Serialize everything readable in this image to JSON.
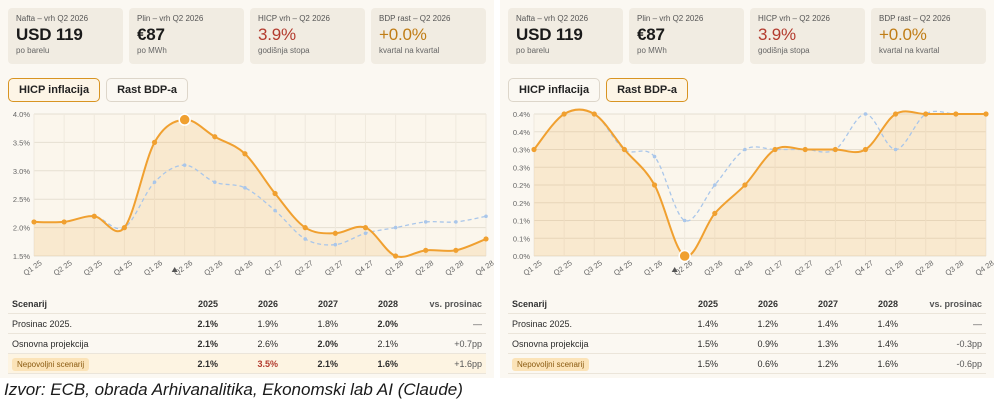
{
  "panels": [
    {
      "cards": [
        {
          "label": "Nafta – vrh Q2 2026",
          "value": "USD 119",
          "sub": "po barelu",
          "tone": "dark"
        },
        {
          "label": "Plin – vrh Q2 2026",
          "value": "€87",
          "sub": "po MWh",
          "tone": "dark"
        },
        {
          "label": "HICP vrh – Q2 2026",
          "value": "3.9%",
          "sub": "godišnja stopa",
          "tone": "red"
        },
        {
          "label": "BDP rast – Q2 2026",
          "value": "+0.0%",
          "sub": "kvartal na kvartal",
          "tone": "orange"
        }
      ],
      "tabs": [
        {
          "label": "HICP inflacija",
          "active": true
        },
        {
          "label": "Rast BDP-a",
          "active": false
        }
      ],
      "table": {
        "headers": [
          "Scenarij",
          "2025",
          "2026",
          "2027",
          "2028",
          "vs. prosinac"
        ],
        "rows": [
          [
            "Prosinac 2025.",
            "2.1%",
            "1.9%",
            "1.8%",
            "2.0%",
            "—"
          ],
          [
            "Osnovna projekcija",
            "2.1%",
            "2.6%",
            "2.0%",
            "2.1%",
            "+0.7pp"
          ],
          [
            "Nepovoljni scenarij",
            "2.1%",
            "3.5%",
            "2.1%",
            "1.6%",
            "+1.6pp"
          ]
        ]
      }
    },
    {
      "cards": [
        {
          "label": "Nafta – vrh Q2 2026",
          "value": "USD 119",
          "sub": "po barelu",
          "tone": "dark"
        },
        {
          "label": "Plin – vrh Q2 2026",
          "value": "€87",
          "sub": "po MWh",
          "tone": "dark"
        },
        {
          "label": "HICP vrh – Q2 2026",
          "value": "3.9%",
          "sub": "godišnja stopa",
          "tone": "red"
        },
        {
          "label": "BDP rast – Q2 2026",
          "value": "+0.0%",
          "sub": "kvartal na kvartal",
          "tone": "orange"
        }
      ],
      "tabs": [
        {
          "label": "HICP inflacija",
          "active": false
        },
        {
          "label": "Rast BDP-a",
          "active": true
        }
      ],
      "table": {
        "headers": [
          "Scenarij",
          "2025",
          "2026",
          "2027",
          "2028",
          "vs. prosinac"
        ],
        "rows": [
          [
            "Prosinac 2025.",
            "1.4%",
            "1.2%",
            "1.4%",
            "1.4%",
            "—"
          ],
          [
            "Osnovna projekcija",
            "1.5%",
            "0.9%",
            "1.3%",
            "1.4%",
            "-0.3pp"
          ],
          [
            "Nepovoljni scenarij",
            "1.5%",
            "0.6%",
            "1.2%",
            "1.6%",
            "-0.6pp"
          ]
        ]
      }
    }
  ],
  "chart_data": [
    {
      "type": "line",
      "x": [
        "Q1 25",
        "Q2 25",
        "Q3 25",
        "Q4 25",
        "Q1 26",
        "Q2 26",
        "Q3 26",
        "Q4 26",
        "Q1 27",
        "Q2 27",
        "Q3 27",
        "Q4 27",
        "Q1 28",
        "Q2 28",
        "Q3 28",
        "Q4 28"
      ],
      "highlight_index": 5,
      "y_ticks": [
        "1.5%",
        "2.0%",
        "2.5%",
        "3.0%",
        "3.5%",
        "4.0%"
      ],
      "ylim": [
        1.5,
        4.0
      ],
      "grid": true,
      "series": [
        {
          "style": "solid",
          "values": [
            2.1,
            2.1,
            2.2,
            2.0,
            3.5,
            3.9,
            3.6,
            3.3,
            2.6,
            2.0,
            1.9,
            2.0,
            1.5,
            1.6,
            1.6,
            1.8
          ]
        },
        {
          "style": "dashed",
          "values": [
            2.1,
            2.1,
            2.2,
            2.0,
            2.8,
            3.1,
            2.8,
            2.7,
            2.3,
            1.8,
            1.7,
            1.9,
            2.0,
            2.1,
            2.1,
            2.2
          ]
        }
      ]
    },
    {
      "type": "line",
      "x": [
        "Q1 25",
        "Q2 25",
        "Q3 25",
        "Q4 25",
        "Q1 26",
        "Q2 26",
        "Q3 26",
        "Q4 26",
        "Q1 27",
        "Q2 27",
        "Q3 27",
        "Q4 27",
        "Q1 28",
        "Q2 28",
        "Q3 28",
        "Q4 28"
      ],
      "highlight_index": 5,
      "y_ticks": [
        "0.0%",
        "0.1%",
        "0.1%",
        "0.2%",
        "0.2%",
        "0.3%",
        "0.3%",
        "0.4%",
        "0.4%"
      ],
      "ylim": [
        0.0,
        0.4
      ],
      "grid": true,
      "series": [
        {
          "style": "solid",
          "values": [
            0.3,
            0.4,
            0.4,
            0.3,
            0.2,
            0.0,
            0.12,
            0.2,
            0.3,
            0.3,
            0.3,
            0.3,
            0.4,
            0.4,
            0.4,
            0.4
          ]
        },
        {
          "style": "dashed",
          "values": [
            0.3,
            0.4,
            0.4,
            0.3,
            0.28,
            0.1,
            0.2,
            0.3,
            0.3,
            0.3,
            0.3,
            0.4,
            0.3,
            0.4,
            0.4,
            0.4
          ]
        }
      ]
    }
  ],
  "source": "Izvor: ECB, obrada Arhivanalitika, Ekonomski lab AI (Claude)",
  "colors": {
    "accent": "#f0a030",
    "dashed": "#a9c6ea",
    "red": "#b33b2e",
    "orange": "#c07d17"
  }
}
